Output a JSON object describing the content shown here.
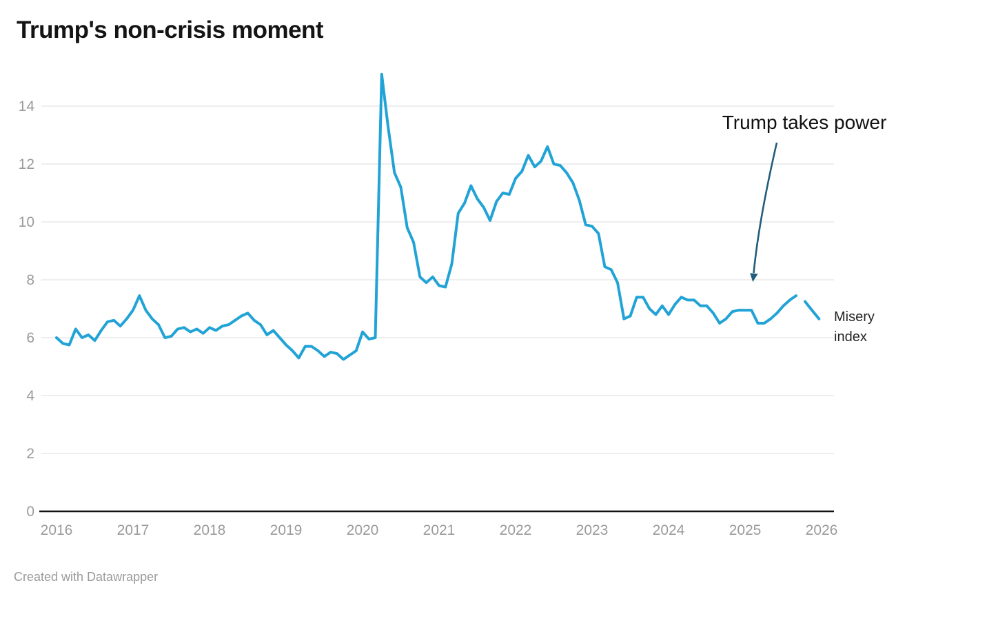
{
  "chart_data": {
    "type": "line",
    "title": "Trump's non-crisis moment",
    "series_label": "Misery index",
    "annotation": {
      "text": "Trump takes power"
    },
    "footer_credit": "Created with Datawrapper",
    "x_tick_labels": [
      "2016",
      "2017",
      "2018",
      "2019",
      "2020",
      "2021",
      "2022",
      "2023",
      "2024",
      "2025",
      "2026"
    ],
    "y_tick_labels": [
      "0",
      "2",
      "4",
      "6",
      "8",
      "10",
      "12",
      "14"
    ],
    "ylim": [
      0,
      15.3
    ],
    "xlim_months_since_2016_01": [
      0,
      122
    ],
    "grid": "horizontal-only",
    "legend_position": "inline-right-of-line-end",
    "series": [
      {
        "name": "Misery index",
        "x_unit": "monthly, starting 2016-01",
        "values": [
          6.0,
          5.8,
          5.75,
          6.3,
          6.0,
          6.1,
          5.9,
          6.25,
          6.55,
          6.6,
          6.4,
          6.65,
          6.95,
          7.45,
          6.95,
          6.65,
          6.45,
          6.0,
          6.05,
          6.3,
          6.35,
          6.2,
          6.3,
          6.15,
          6.35,
          6.25,
          6.4,
          6.45,
          6.6,
          6.75,
          6.85,
          6.6,
          6.45,
          6.1,
          6.25,
          6.0,
          5.75,
          5.55,
          5.3,
          5.7,
          5.7,
          5.55,
          5.35,
          5.5,
          5.45,
          5.25,
          5.4,
          5.55,
          6.2,
          5.95,
          6.0,
          15.1,
          13.3,
          11.7,
          11.2,
          9.8,
          9.3,
          8.1,
          7.9,
          8.1,
          7.8,
          7.75,
          8.55,
          10.3,
          10.65,
          11.25,
          10.8,
          10.5,
          10.05,
          10.7,
          11.0,
          10.95,
          11.5,
          11.75,
          12.3,
          11.9,
          12.1,
          12.6,
          12.0,
          11.95,
          11.7,
          11.35,
          10.75,
          9.9,
          9.85,
          9.6,
          8.45,
          8.35,
          7.9,
          6.65,
          6.75,
          7.4,
          7.4,
          7.0,
          6.8,
          7.1,
          6.8,
          7.15,
          7.4,
          7.3,
          7.3,
          7.1,
          7.1,
          6.85,
          6.5,
          6.65,
          6.9,
          6.95,
          6.95,
          6.95,
          6.5,
          6.5,
          6.65,
          6.85,
          7.1,
          7.3,
          7.45
        ]
      }
    ],
    "detached_end_segment": {
      "note": "short separate stroke after a gap at the right end of the line",
      "points_month_value": [
        [
          117.4,
          7.25
        ],
        [
          118.3,
          7.0
        ],
        [
          119.6,
          6.65
        ]
      ]
    },
    "colors": {
      "line": "#22a3d6",
      "arrow": "#215d7c",
      "gridline": "#e9e9e9",
      "baseline": "#111111",
      "tick_text": "#9b9b9b",
      "title_text": "#141414",
      "annotation_text": "#111111",
      "series_label_text": "#262626",
      "footer_text": "#9b9b9b",
      "background": "#ffffff"
    }
  }
}
